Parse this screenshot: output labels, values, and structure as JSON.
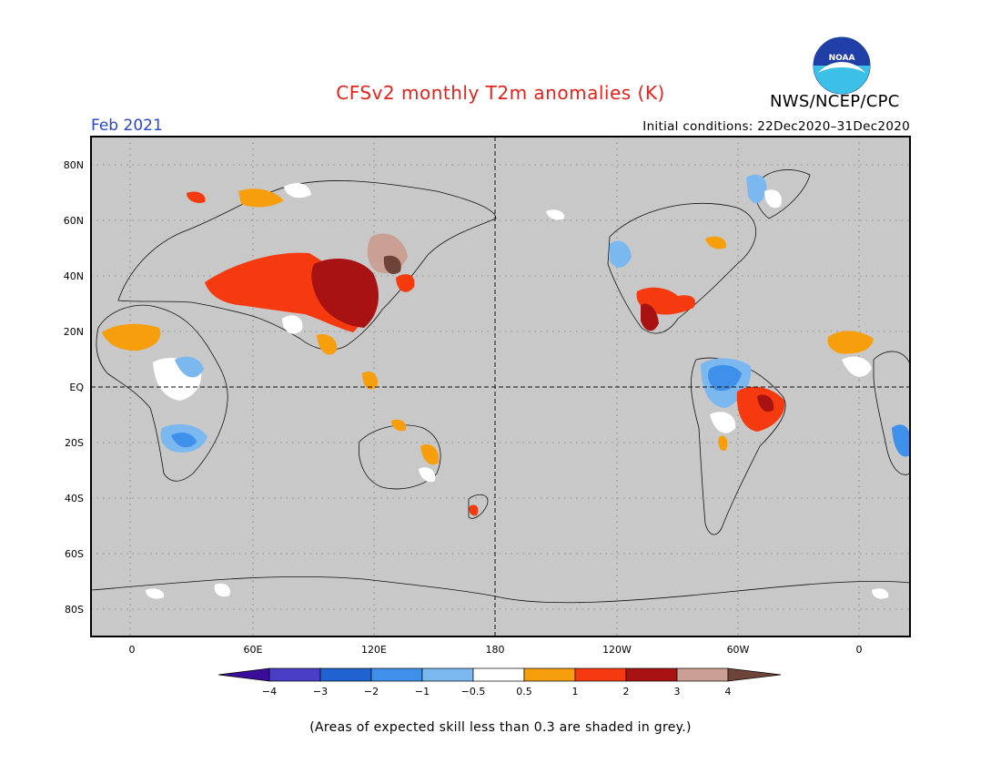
{
  "header": {
    "title": "CFSv2 monthly T2m anomalies (K)",
    "agency": "NWS/NCEP/CPC",
    "logo_text": "NOAA",
    "valid_month": "Feb 2021",
    "initial_conditions": "Initial conditions: 22Dec2020–31Dec2020"
  },
  "map": {
    "background_color": "#c8c8c8",
    "grid_style": "dotted",
    "lat_ticks": [
      "80N",
      "60N",
      "40N",
      "20N",
      "EQ",
      "20S",
      "40S",
      "60S",
      "80S"
    ],
    "lon_ticks": [
      "0",
      "60E",
      "120E",
      "180",
      "120W",
      "60W",
      "0"
    ],
    "reference_lines": [
      "EQ",
      "180"
    ]
  },
  "legend": {
    "levels": [
      "−4",
      "−3",
      "−2",
      "−1",
      "−0.5",
      "0.5",
      "1",
      "2",
      "3",
      "4"
    ],
    "colors": [
      "#3a0e9a",
      "#4a3ec6",
      "#1f63d0",
      "#3e90ea",
      "#7bb8f0",
      "#ffffff",
      "#f69e0c",
      "#f53a10",
      "#a81212",
      "#c9a093",
      "#6e4438"
    ]
  },
  "footnote": "(Areas of expected skill less than 0.3 are shaded in grey.)"
}
